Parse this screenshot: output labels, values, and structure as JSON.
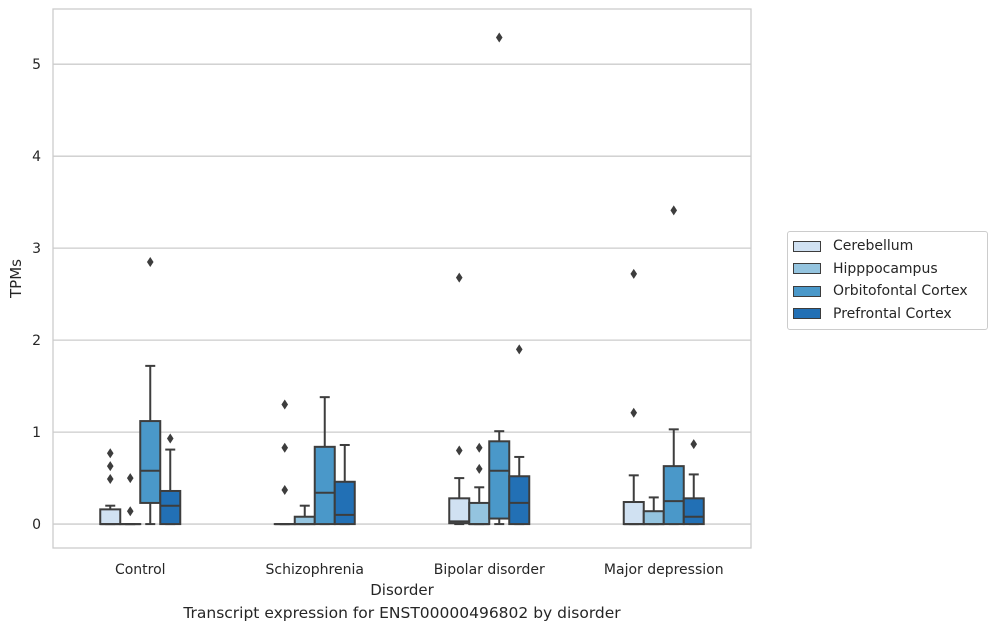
{
  "caption": "Transcript expression for ENST00000496802 by disorder",
  "chart_data": {
    "type": "box",
    "title": "",
    "xlabel": "Disorder",
    "ylabel": "TPMs",
    "ylim": [
      -0.26,
      5.6
    ],
    "yticks": [
      0,
      1,
      2,
      3,
      4,
      5
    ],
    "grid": "horizontal",
    "legend_position": "right",
    "categories": [
      "Control",
      "Schizophrenia",
      "Bipolar disorder",
      "Major depression"
    ],
    "series": [
      {
        "name": "Cerebellum",
        "color": "#d0e1f2",
        "boxes": [
          {
            "whislo": 0,
            "q1": 0,
            "med": 0,
            "q3": 0.16,
            "whishi": 0.2,
            "fliers": [
              0.49,
              0.63,
              0.77
            ]
          },
          {
            "whislo": 0,
            "q1": 0,
            "med": 0,
            "q3": 0,
            "whishi": 0,
            "fliers": [
              0.37,
              0.83,
              1.3
            ]
          },
          {
            "whislo": 0,
            "q1": 0.01,
            "med": 0.03,
            "q3": 0.28,
            "whishi": 0.5,
            "fliers": [
              0.8,
              2.68
            ]
          },
          {
            "whislo": 0,
            "q1": 0,
            "med": 0,
            "q3": 0.24,
            "whishi": 0.53,
            "fliers": [
              1.21,
              2.72
            ]
          }
        ]
      },
      {
        "name": "Hipppocampus",
        "color": "#94c4df",
        "boxes": [
          {
            "whislo": 0,
            "q1": 0,
            "med": 0,
            "q3": 0,
            "whishi": 0,
            "fliers": [
              0.14,
              0.5
            ]
          },
          {
            "whislo": 0,
            "q1": 0,
            "med": 0,
            "q3": 0.08,
            "whishi": 0.2,
            "fliers": []
          },
          {
            "whislo": 0,
            "q1": 0,
            "med": 0,
            "q3": 0.23,
            "whishi": 0.4,
            "fliers": [
              0.6,
              0.83
            ]
          },
          {
            "whislo": 0,
            "q1": 0,
            "med": 0,
            "q3": 0.14,
            "whishi": 0.29,
            "fliers": []
          }
        ]
      },
      {
        "name": "Orbitofontal Cortex",
        "color": "#4a98c9",
        "boxes": [
          {
            "whislo": 0,
            "q1": 0.23,
            "med": 0.58,
            "q3": 1.12,
            "whishi": 1.72,
            "fliers": [
              2.85
            ]
          },
          {
            "whislo": 0,
            "q1": 0,
            "med": 0.34,
            "q3": 0.84,
            "whishi": 1.38,
            "fliers": []
          },
          {
            "whislo": 0,
            "q1": 0.06,
            "med": 0.58,
            "q3": 0.9,
            "whishi": 1.01,
            "fliers": [
              5.29
            ]
          },
          {
            "whislo": 0,
            "q1": 0,
            "med": 0.25,
            "q3": 0.63,
            "whishi": 1.03,
            "fliers": [
              3.41
            ]
          }
        ]
      },
      {
        "name": "Prefrontal Cortex",
        "color": "#2270b5",
        "boxes": [
          {
            "whislo": 0,
            "q1": 0,
            "med": 0.2,
            "q3": 0.36,
            "whishi": 0.81,
            "fliers": [
              0.93
            ]
          },
          {
            "whislo": 0,
            "q1": 0,
            "med": 0.1,
            "q3": 0.46,
            "whishi": 0.86,
            "fliers": []
          },
          {
            "whislo": 0,
            "q1": 0,
            "med": 0.23,
            "q3": 0.52,
            "whishi": 0.73,
            "fliers": [
              1.9
            ]
          },
          {
            "whislo": 0,
            "q1": 0,
            "med": 0.08,
            "q3": 0.28,
            "whishi": 0.54,
            "fliers": [
              0.87
            ]
          }
        ]
      }
    ]
  }
}
